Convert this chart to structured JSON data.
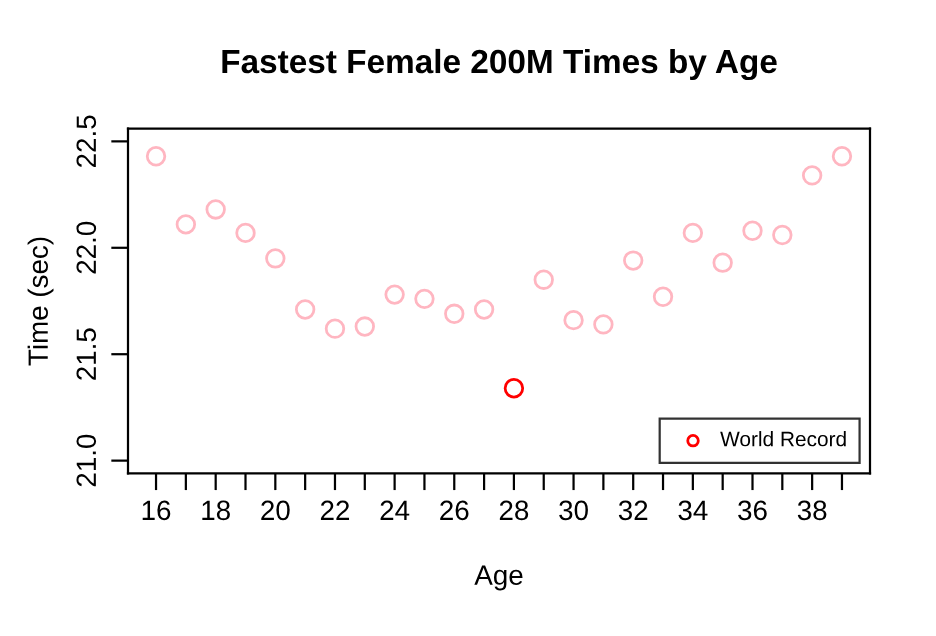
{
  "chart_data": {
    "type": "scatter",
    "title": "Fastest Female 200M Times by Age",
    "xlabel": "Age",
    "ylabel": "Time (sec)",
    "series": [
      {
        "color": "#ffb6c1",
        "x": [
          16,
          17,
          18,
          19,
          20,
          21,
          22,
          23,
          24,
          25,
          26,
          27,
          29,
          30,
          31,
          32,
          33,
          34,
          35,
          36,
          37,
          38,
          39
        ],
        "values": [
          22.43,
          22.11,
          22.18,
          22.07,
          21.95,
          21.71,
          21.62,
          21.63,
          21.78,
          21.76,
          21.69,
          21.71,
          21.85,
          21.66,
          21.64,
          21.94,
          21.77,
          22.07,
          21.93,
          22.08,
          22.06,
          22.34,
          22.43
        ]
      },
      {
        "name": "World Record",
        "color": "#ff0000",
        "x": [
          28
        ],
        "values": [
          21.34
        ]
      }
    ],
    "xlim": [
      15.06,
      39.94
    ],
    "ylim": [
      20.94,
      22.56
    ],
    "xticks": [
      16,
      {
        "value": 17,
        "label": null
      },
      18,
      {
        "value": 19,
        "label": null
      },
      20,
      {
        "value": 21,
        "label": null
      },
      22,
      {
        "value": 23,
        "label": null
      },
      24,
      {
        "value": 25,
        "label": null
      },
      26,
      {
        "value": 27,
        "label": null
      },
      28,
      {
        "value": 29,
        "label": null
      },
      30,
      {
        "value": 31,
        "label": null
      },
      32,
      {
        "value": 33,
        "label": null
      },
      34,
      {
        "value": 35,
        "label": null
      },
      36,
      {
        "value": 37,
        "label": null
      },
      38,
      {
        "value": 39,
        "label": null
      }
    ],
    "yticks": [
      {
        "value": 21,
        "label": "21.0"
      },
      21.5,
      {
        "value": 22,
        "label": "22.0"
      },
      22.5
    ],
    "marker": "circle",
    "legend": "bottom right",
    "grid": false
  }
}
